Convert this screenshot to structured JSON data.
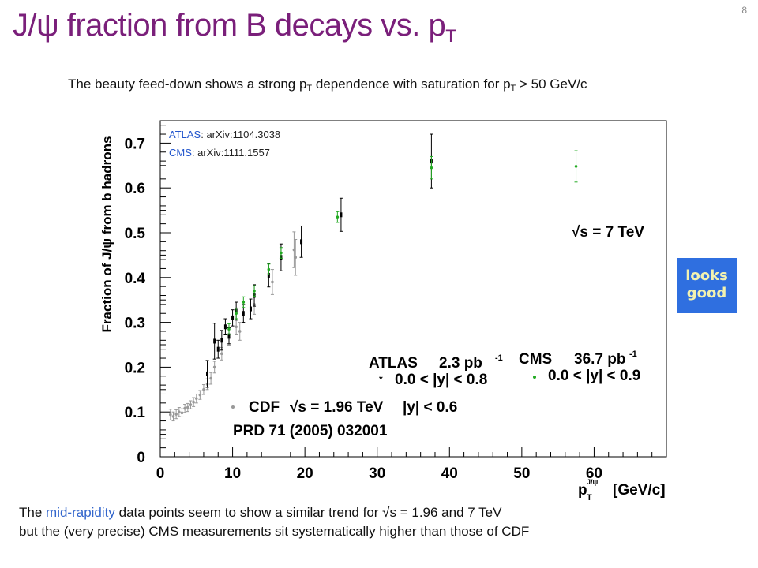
{
  "slide": {
    "title": "J/ψ fraction from B decays vs. p",
    "title_sub": "T",
    "page_number": "8",
    "subtitle_parts": [
      "The beauty feed-down shows a strong p",
      "T",
      " dependence with saturation for p",
      "T",
      " > 50 GeV/c"
    ],
    "caption_line1_pre": "The ",
    "caption_line1_hl": "mid-rapidity",
    "caption_line1_post": " data points seem to show a similar trend for √s = 1.96 and 7 TeV",
    "caption_line2": "but the (very precise) CMS measurements sit systematically higher than those of CDF",
    "badge_line1": "looks",
    "badge_line2": "good",
    "colors": {
      "title": "#7a1f7a",
      "badge_bg": "#2f6fe0",
      "badge_text": "#f2f2b0",
      "highlight": "#3366cc"
    }
  },
  "chart_data": {
    "type": "scatter",
    "ylabel": "Fraction of J/ψ from b hadrons",
    "xlabel_main": "p",
    "xlabel_sub": "T",
    "xlabel_sup": "J/ψ",
    "xlabel_unit": "[GeV/c]",
    "xlim": [
      0,
      70
    ],
    "ylim": [
      0,
      0.75
    ],
    "x_ticks": [
      0,
      10,
      20,
      30,
      40,
      50,
      60
    ],
    "y_ticks": [
      0,
      0.1,
      0.2,
      0.3,
      0.4,
      0.5,
      0.6,
      0.7
    ],
    "y_tick_labels": [
      "0",
      "0.1",
      "0.2",
      "0.3",
      "0.4",
      "0.5",
      "0.6",
      "0.7"
    ],
    "grid": false,
    "references": [
      {
        "label": "ATLAS",
        "text": ": arXiv:1104.3038"
      },
      {
        "label": "CMS",
        "text": ": arXiv:1111.1557"
      }
    ],
    "energy_label": "√s = 7 TeV",
    "legends": {
      "atlas": {
        "name": "ATLAS",
        "lumi": "2.3 pb",
        "lumi_sup": "-1",
        "range": "0.0 < |y| < 0.8"
      },
      "cms": {
        "name": "CMS",
        "lumi": "36.7 pb",
        "lumi_sup": "-1",
        "range": "0.0 < |y| < 0.9"
      },
      "cdf": {
        "name": "CDF",
        "energy": "√s = 1.96 TeV",
        "range": "|y| < 0.6",
        "ref": "PRD 71 (2005) 032001"
      }
    },
    "series": [
      {
        "name": "CDF",
        "color": "#999999",
        "points": [
          {
            "x": 1.4,
            "y": 0.094,
            "e": 0.012
          },
          {
            "x": 1.8,
            "y": 0.09,
            "e": 0.01
          },
          {
            "x": 2.2,
            "y": 0.095,
            "e": 0.01
          },
          {
            "x": 2.6,
            "y": 0.1,
            "e": 0.01
          },
          {
            "x": 3.0,
            "y": 0.098,
            "e": 0.009
          },
          {
            "x": 3.4,
            "y": 0.108,
            "e": 0.009
          },
          {
            "x": 3.8,
            "y": 0.11,
            "e": 0.009
          },
          {
            "x": 4.2,
            "y": 0.116,
            "e": 0.009
          },
          {
            "x": 4.6,
            "y": 0.122,
            "e": 0.01
          },
          {
            "x": 5.0,
            "y": 0.13,
            "e": 0.01
          },
          {
            "x": 5.5,
            "y": 0.138,
            "e": 0.01
          },
          {
            "x": 6.0,
            "y": 0.15,
            "e": 0.011
          },
          {
            "x": 6.5,
            "y": 0.162,
            "e": 0.012
          },
          {
            "x": 7.0,
            "y": 0.175,
            "e": 0.013
          },
          {
            "x": 7.5,
            "y": 0.2,
            "e": 0.013
          },
          {
            "x": 8.5,
            "y": 0.23,
            "e": 0.014
          },
          {
            "x": 9.5,
            "y": 0.265,
            "e": 0.016
          },
          {
            "x": 10.5,
            "y": 0.29,
            "e": 0.018
          },
          {
            "x": 11.0,
            "y": 0.28,
            "e": 0.02
          },
          {
            "x": 13.0,
            "y": 0.34,
            "e": 0.022
          },
          {
            "x": 15.5,
            "y": 0.39,
            "e": 0.028
          },
          {
            "x": 18.5,
            "y": 0.462,
            "e": 0.04
          },
          {
            "x": 18.7,
            "y": 0.445,
            "e": 0.04
          }
        ]
      },
      {
        "name": "ATLAS",
        "color": "#000000",
        "points": [
          {
            "x": 6.5,
            "y": 0.185,
            "e": 0.03
          },
          {
            "x": 7.5,
            "y": 0.258,
            "e": 0.04
          },
          {
            "x": 8.0,
            "y": 0.24,
            "e": 0.02
          },
          {
            "x": 8.5,
            "y": 0.26,
            "e": 0.022
          },
          {
            "x": 9.0,
            "y": 0.29,
            "e": 0.018
          },
          {
            "x": 9.5,
            "y": 0.27,
            "e": 0.018
          },
          {
            "x": 10.0,
            "y": 0.31,
            "e": 0.018
          },
          {
            "x": 10.5,
            "y": 0.325,
            "e": 0.02
          },
          {
            "x": 11.5,
            "y": 0.32,
            "e": 0.02
          },
          {
            "x": 12.5,
            "y": 0.33,
            "e": 0.022
          },
          {
            "x": 13.0,
            "y": 0.36,
            "e": 0.024
          },
          {
            "x": 15.0,
            "y": 0.405,
            "e": 0.026
          },
          {
            "x": 16.7,
            "y": 0.445,
            "e": 0.03
          },
          {
            "x": 19.5,
            "y": 0.48,
            "e": 0.035
          },
          {
            "x": 25.0,
            "y": 0.54,
            "e": 0.037
          },
          {
            "x": 37.5,
            "y": 0.66,
            "e": 0.06
          }
        ]
      },
      {
        "name": "CMS",
        "color": "#22aa22",
        "points": [
          {
            "x": 9.5,
            "y": 0.285,
            "e": 0.012
          },
          {
            "x": 10.5,
            "y": 0.32,
            "e": 0.012
          },
          {
            "x": 11.5,
            "y": 0.345,
            "e": 0.012
          },
          {
            "x": 13.0,
            "y": 0.37,
            "e": 0.012
          },
          {
            "x": 15.0,
            "y": 0.418,
            "e": 0.012
          },
          {
            "x": 16.7,
            "y": 0.455,
            "e": 0.012
          },
          {
            "x": 24.5,
            "y": 0.535,
            "e": 0.012
          },
          {
            "x": 37.5,
            "y": 0.645,
            "e": 0.025
          },
          {
            "x": 57.5,
            "y": 0.648,
            "e": 0.035
          }
        ]
      }
    ]
  }
}
